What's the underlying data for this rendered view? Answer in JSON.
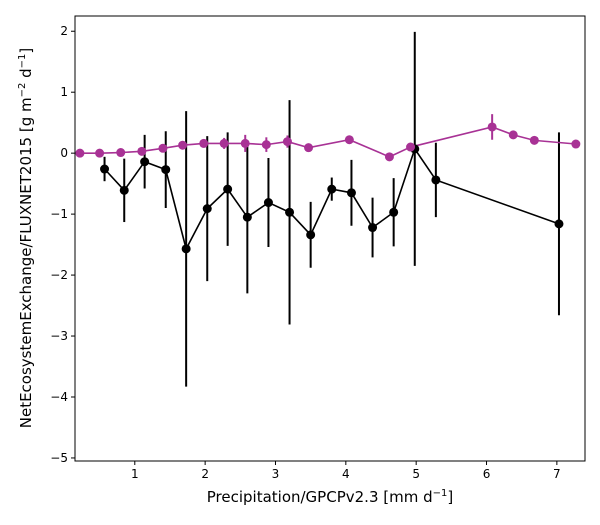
{
  "chart_data": {
    "type": "line",
    "xlabel": "Precipitation/GPCPv2.3 [mm d",
    "xlabel_sup": "−1",
    "xlabel_end": "]",
    "ylabel": "NetEcosystemExchange/FLUXNET2015 [g m",
    "ylabel_sup1": "−2",
    "ylabel_mid": " d",
    "ylabel_sup2": "−1",
    "ylabel_end": "]",
    "xlim": [
      0.15,
      7.4
    ],
    "ylim": [
      -5.05,
      2.25
    ],
    "xticks": [
      1,
      2,
      3,
      4,
      5,
      6,
      7
    ],
    "yticks": [
      -5,
      -4,
      -3,
      -2,
      -1,
      0,
      1,
      2
    ],
    "grid": false,
    "series": [
      {
        "color": "#000000",
        "x": [
          0.57,
          0.85,
          1.14,
          1.44,
          1.73,
          2.03,
          2.32,
          2.6,
          2.9,
          3.2,
          3.5,
          3.8,
          4.08,
          4.38,
          4.68,
          4.98,
          5.28,
          7.03
        ],
        "y": [
          -0.26,
          -0.61,
          -0.14,
          -0.27,
          -1.57,
          -0.91,
          -0.59,
          -1.05,
          -0.81,
          -0.97,
          -1.34,
          -0.59,
          -0.65,
          -1.22,
          -0.97,
          0.07,
          -0.44,
          -1.16
        ],
        "err": [
          0.2,
          0.52,
          0.44,
          0.63,
          2.26,
          1.19,
          0.93,
          1.25,
          0.73,
          1.84,
          0.54,
          0.19,
          0.54,
          0.49,
          0.56,
          1.92,
          0.61,
          1.5
        ]
      },
      {
        "color": "#a83295",
        "x": [
          0.22,
          0.5,
          0.8,
          1.1,
          1.4,
          1.68,
          1.98,
          2.27,
          2.57,
          2.87,
          3.17,
          3.47,
          4.05,
          4.62,
          4.92,
          6.08,
          6.38,
          6.68,
          7.27
        ],
        "y": [
          0.0,
          0.0,
          0.01,
          0.03,
          0.08,
          0.13,
          0.16,
          0.16,
          0.16,
          0.14,
          0.19,
          0.09,
          0.22,
          -0.06,
          0.1,
          0.43,
          0.3,
          0.21,
          0.15
        ],
        "err": [
          0.0,
          0.0,
          0.0,
          0.05,
          0.05,
          0.06,
          0.07,
          0.09,
          0.14,
          0.12,
          0.1,
          0.0,
          0.05,
          0.05,
          0.06,
          0.21,
          0.05,
          0.04,
          0.04
        ]
      }
    ]
  }
}
